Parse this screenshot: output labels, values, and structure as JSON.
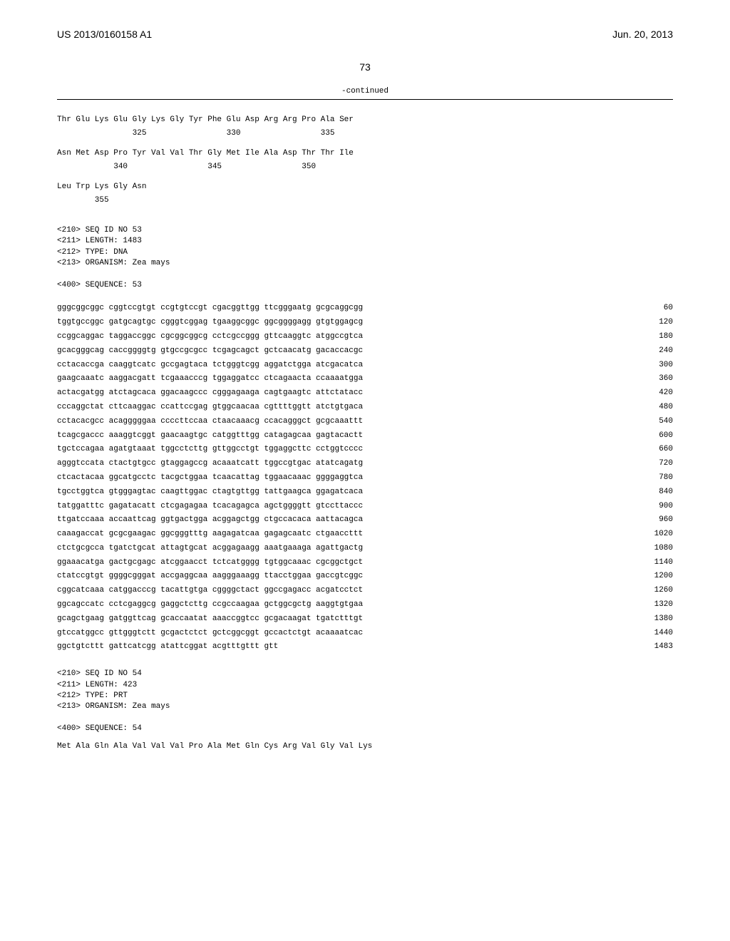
{
  "header": {
    "left": "US 2013/0160158 A1",
    "right": "Jun. 20, 2013"
  },
  "pageNumber": "73",
  "continued": "-continued",
  "aminoAcids": [
    {
      "line1": "Thr Glu Lys Glu Gly Lys Gly Tyr Phe Glu Asp Arg Arg Pro Ala Ser",
      "line2": "                325                 330                 335"
    },
    {
      "line1": "Asn Met Asp Pro Tyr Val Val Thr Gly Met Ile Ala Asp Thr Thr Ile",
      "line2": "            340                 345                 350"
    },
    {
      "line1": "Leu Trp Lys Gly Asn",
      "line2": "        355"
    }
  ],
  "metadata53": "<210> SEQ ID NO 53\n<211> LENGTH: 1483\n<212> TYPE: DNA\n<213> ORGANISM: Zea mays\n\n<400> SEQUENCE: 53",
  "sequences": [
    {
      "seq": "gggcggcggc cggtccgtgt ccgtgtccgt cgacggttgg ttcgggaatg gcgcaggcgg",
      "num": "60"
    },
    {
      "seq": "tggtgccggc gatgcagtgc cgggtcggag tgaaggcggc ggcggggagg gtgtggagcg",
      "num": "120"
    },
    {
      "seq": "ccggcaggac taggaccggc cgcggcggcg cctcgccggg gttcaaggtc atggccgtca",
      "num": "180"
    },
    {
      "seq": "gcacgggcag caccggggtg gtgccgcgcc tcgagcagct gctcaacatg gacaccacgc",
      "num": "240"
    },
    {
      "seq": "cctacaccga caaggtcatc gccgagtaca tctgggtcgg aggatctgga atcgacatca",
      "num": "300"
    },
    {
      "seq": "gaagcaaatc aaggacgatt tcgaaacccg tggaggatcc ctcagaacta ccaaaatgga",
      "num": "360"
    },
    {
      "seq": "actacgatgg atctagcaca ggacaagccc cgggagaaga cagtgaagtc attctatacc",
      "num": "420"
    },
    {
      "seq": "cccaggctat cttcaaggac ccattccgag gtggcaacaa cgttttggtt atctgtgaca",
      "num": "480"
    },
    {
      "seq": "cctacacgcc acagggggaa ccccttccaa ctaacaaacg ccacagggct gcgcaaattt",
      "num": "540"
    },
    {
      "seq": "tcagcgaccc aaaggtcggt gaacaagtgc catggtttgg catagagcaa gagtacactt",
      "num": "600"
    },
    {
      "seq": "tgctccagaa agatgtaaat tggcctcttg gttggcctgt tggaggcttc cctggtcccc",
      "num": "660"
    },
    {
      "seq": "agggtccata ctactgtgcc gtaggagccg acaaatcatt tggccgtgac atatcagatg",
      "num": "720"
    },
    {
      "seq": "ctcactacaa ggcatgcctc tacgctggaa tcaacattag tggaacaaac ggggaggtca",
      "num": "780"
    },
    {
      "seq": "tgcctggtca gtgggagtac caagttggac ctagtgttgg tattgaagca ggagatcaca",
      "num": "840"
    },
    {
      "seq": "tatggatttc gagatacatt ctcgagagaa tcacagagca agctggggtt gtccttaccc",
      "num": "900"
    },
    {
      "seq": "ttgatccaaa accaattcag ggtgactgga acggagctgg ctgccacaca aattacagca",
      "num": "960"
    },
    {
      "seq": "caaagaccat gcgcgaagac ggcgggtttg aagagatcaa gagagcaatc ctgaaccttt",
      "num": "1020"
    },
    {
      "seq": "ctctgcgcca tgatctgcat attagtgcat acggagaagg aaatgaaaga agattgactg",
      "num": "1080"
    },
    {
      "seq": "ggaaacatga gactgcgagc atcggaacct tctcatgggg tgtggcaaac cgcggctgct",
      "num": "1140"
    },
    {
      "seq": "ctatccgtgt ggggcgggat accgaggcaa aagggaaagg ttacctggaa gaccgtcggc",
      "num": "1200"
    },
    {
      "seq": "cggcatcaaa catggacccg tacattgtga cggggctact ggccgagacc acgatcctct",
      "num": "1260"
    },
    {
      "seq": "ggcagccatc cctcgaggcg gaggctcttg ccgccaagaa gctggcgctg aaggtgtgaa",
      "num": "1320"
    },
    {
      "seq": "gcagctgaag gatggttcag gcaccaatat aaaccggtcc gcgacaagat tgatctttgt",
      "num": "1380"
    },
    {
      "seq": "gtccatggcc gttgggtctt gcgactctct gctcggcggt gccactctgt acaaaatcac",
      "num": "1440"
    },
    {
      "seq": "ggctgtcttt gattcatcgg atattcggat acgtttgttt gtt",
      "num": "1483"
    }
  ],
  "metadata54": "<210> SEQ ID NO 54\n<211> LENGTH: 423\n<212> TYPE: PRT\n<213> ORGANISM: Zea mays\n\n<400> SEQUENCE: 54",
  "bottomLine": "Met Ala Gln Ala Val Val Val Pro Ala Met Gln Cys Arg Val Gly Val Lys"
}
